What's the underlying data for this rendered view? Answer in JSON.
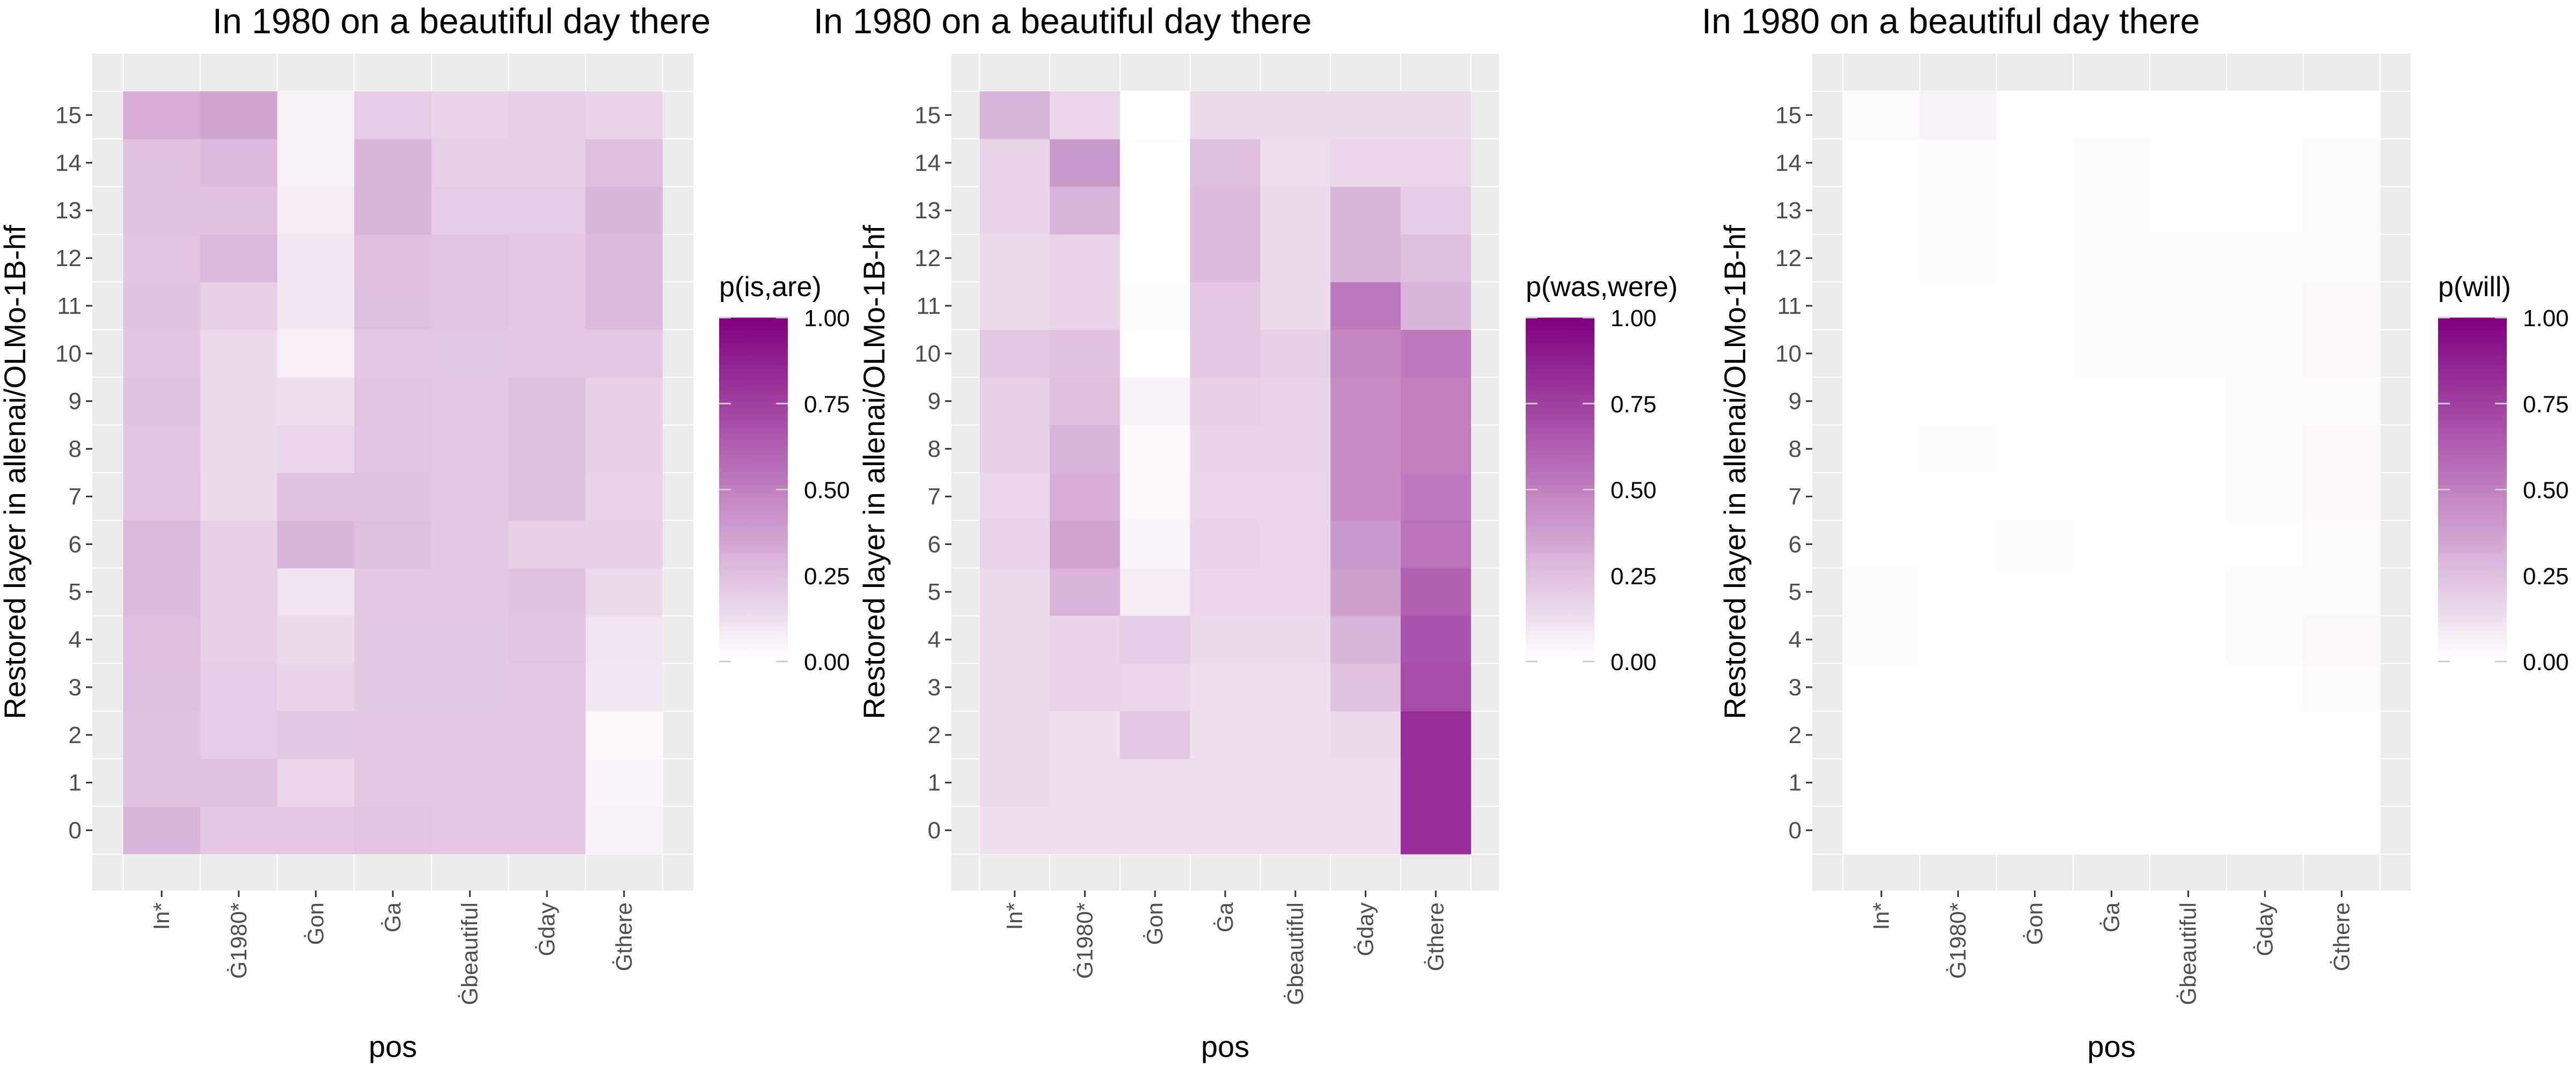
{
  "chart_data": [
    {
      "type": "heatmap",
      "title": "In 1980 on a beautiful day there",
      "xlabel": "pos",
      "ylabel": "Restored layer in allenai/OLMo-1B-hf",
      "categories": [
        "In*",
        "Ġ1980*",
        "Ġon",
        "Ġa",
        "Ġbeautiful",
        "Ġday",
        "Ġthere"
      ],
      "layers": [
        0,
        1,
        2,
        3,
        4,
        5,
        6,
        7,
        8,
        9,
        10,
        11,
        12,
        13,
        14,
        15
      ],
      "legend_title": "p(is,are)",
      "color_low": "#ffffff",
      "color_high": "#800080",
      "zlim": [
        0,
        1
      ],
      "legend_ticks": [
        "0.00",
        "0.25",
        "0.50",
        "0.75",
        "1.00"
      ],
      "values": [
        [
          0.3,
          0.22,
          0.22,
          0.23,
          0.22,
          0.22,
          0.06
        ],
        [
          0.24,
          0.24,
          0.16,
          0.22,
          0.22,
          0.22,
          0.04
        ],
        [
          0.24,
          0.2,
          0.21,
          0.22,
          0.22,
          0.22,
          0.03
        ],
        [
          0.25,
          0.2,
          0.17,
          0.21,
          0.21,
          0.22,
          0.1
        ],
        [
          0.26,
          0.19,
          0.14,
          0.21,
          0.21,
          0.23,
          0.11
        ],
        [
          0.27,
          0.19,
          0.11,
          0.22,
          0.22,
          0.24,
          0.14
        ],
        [
          0.27,
          0.18,
          0.3,
          0.25,
          0.22,
          0.18,
          0.18
        ],
        [
          0.23,
          0.15,
          0.24,
          0.24,
          0.22,
          0.25,
          0.17
        ],
        [
          0.23,
          0.14,
          0.16,
          0.23,
          0.22,
          0.25,
          0.18
        ],
        [
          0.24,
          0.14,
          0.13,
          0.23,
          0.22,
          0.25,
          0.18
        ],
        [
          0.23,
          0.14,
          0.07,
          0.22,
          0.21,
          0.22,
          0.22
        ],
        [
          0.24,
          0.19,
          0.1,
          0.25,
          0.23,
          0.22,
          0.27
        ],
        [
          0.23,
          0.28,
          0.1,
          0.26,
          0.23,
          0.22,
          0.27
        ],
        [
          0.24,
          0.24,
          0.08,
          0.3,
          0.2,
          0.2,
          0.3
        ],
        [
          0.24,
          0.27,
          0.06,
          0.3,
          0.18,
          0.18,
          0.26
        ],
        [
          0.32,
          0.36,
          0.06,
          0.2,
          0.17,
          0.18,
          0.17
        ]
      ]
    },
    {
      "type": "heatmap",
      "title": "In 1980 on a beautiful day there",
      "xlabel": "pos",
      "ylabel": "Restored layer in allenai/OLMo-1B-hf",
      "categories": [
        "In*",
        "Ġ1980*",
        "Ġon",
        "Ġa",
        "Ġbeautiful",
        "Ġday",
        "Ġthere"
      ],
      "layers": [
        0,
        1,
        2,
        3,
        4,
        5,
        6,
        7,
        8,
        9,
        10,
        11,
        12,
        13,
        14,
        15
      ],
      "legend_title": "p(was,were)",
      "color_low": "#ffffff",
      "color_high": "#800080",
      "zlim": [
        0,
        1
      ],
      "legend_ticks": [
        "0.00",
        "0.25",
        "0.50",
        "0.75",
        "1.00"
      ],
      "values": [
        [
          0.12,
          0.12,
          0.12,
          0.12,
          0.12,
          0.12,
          0.82
        ],
        [
          0.14,
          0.12,
          0.12,
          0.12,
          0.12,
          0.12,
          0.82
        ],
        [
          0.14,
          0.12,
          0.22,
          0.12,
          0.12,
          0.14,
          0.82
        ],
        [
          0.14,
          0.17,
          0.16,
          0.12,
          0.12,
          0.24,
          0.7
        ],
        [
          0.15,
          0.17,
          0.2,
          0.14,
          0.14,
          0.3,
          0.68
        ],
        [
          0.15,
          0.3,
          0.08,
          0.16,
          0.16,
          0.38,
          0.62
        ],
        [
          0.17,
          0.36,
          0.04,
          0.17,
          0.16,
          0.4,
          0.55
        ],
        [
          0.16,
          0.32,
          0.03,
          0.16,
          0.16,
          0.45,
          0.52
        ],
        [
          0.18,
          0.3,
          0.03,
          0.17,
          0.17,
          0.45,
          0.5
        ],
        [
          0.18,
          0.26,
          0.06,
          0.18,
          0.17,
          0.45,
          0.5
        ],
        [
          0.22,
          0.24,
          0.0,
          0.22,
          0.18,
          0.48,
          0.52
        ],
        [
          0.14,
          0.17,
          0.02,
          0.22,
          0.14,
          0.52,
          0.3
        ],
        [
          0.14,
          0.17,
          0.01,
          0.27,
          0.14,
          0.3,
          0.25
        ],
        [
          0.17,
          0.3,
          0.01,
          0.27,
          0.14,
          0.3,
          0.2
        ],
        [
          0.17,
          0.4,
          0.01,
          0.25,
          0.13,
          0.16,
          0.16
        ],
        [
          0.3,
          0.16,
          0.0,
          0.14,
          0.14,
          0.14,
          0.14
        ]
      ]
    },
    {
      "type": "heatmap",
      "title": "In 1980 on a beautiful day there",
      "xlabel": "pos",
      "ylabel": "Restored layer in allenai/OLMo-1B-hf",
      "categories": [
        "In*",
        "Ġ1980*",
        "Ġon",
        "Ġa",
        "Ġbeautiful",
        "Ġday",
        "Ġthere"
      ],
      "layers": [
        0,
        1,
        2,
        3,
        4,
        5,
        6,
        7,
        8,
        9,
        10,
        11,
        12,
        13,
        14,
        15
      ],
      "legend_title": "p(will)",
      "color_low": "#ffffff",
      "color_high": "#800080",
      "zlim": [
        0,
        1
      ],
      "legend_ticks": [
        "0.00",
        "0.25",
        "0.50",
        "0.75",
        "1.00"
      ],
      "values": [
        [
          0.01,
          0.01,
          0.01,
          0.01,
          0.01,
          0.01,
          0.01
        ],
        [
          0.01,
          0.01,
          0.01,
          0.01,
          0.01,
          0.01,
          0.01
        ],
        [
          0.01,
          0.01,
          0.01,
          0.01,
          0.01,
          0.01,
          0.01
        ],
        [
          0.01,
          0.01,
          0.01,
          0.01,
          0.01,
          0.01,
          0.02
        ],
        [
          0.02,
          0.01,
          0.01,
          0.01,
          0.01,
          0.02,
          0.03
        ],
        [
          0.02,
          0.01,
          0.01,
          0.01,
          0.01,
          0.02,
          0.02
        ],
        [
          0.01,
          0.01,
          0.02,
          0.01,
          0.01,
          0.01,
          0.02
        ],
        [
          0.01,
          0.01,
          0.01,
          0.01,
          0.01,
          0.02,
          0.03
        ],
        [
          0.01,
          0.02,
          0.01,
          0.01,
          0.01,
          0.02,
          0.03
        ],
        [
          0.01,
          0.01,
          0.01,
          0.01,
          0.01,
          0.02,
          0.02
        ],
        [
          0.01,
          0.01,
          0.01,
          0.02,
          0.02,
          0.02,
          0.03
        ],
        [
          0.01,
          0.01,
          0.01,
          0.02,
          0.02,
          0.02,
          0.03
        ],
        [
          0.01,
          0.02,
          0.01,
          0.02,
          0.02,
          0.02,
          0.02
        ],
        [
          0.01,
          0.02,
          0.01,
          0.02,
          0.01,
          0.01,
          0.02
        ],
        [
          0.01,
          0.02,
          0.01,
          0.02,
          0.01,
          0.01,
          0.02
        ],
        [
          0.02,
          0.06,
          0.01,
          0.01,
          0.01,
          0.01,
          0.01
        ]
      ]
    }
  ]
}
